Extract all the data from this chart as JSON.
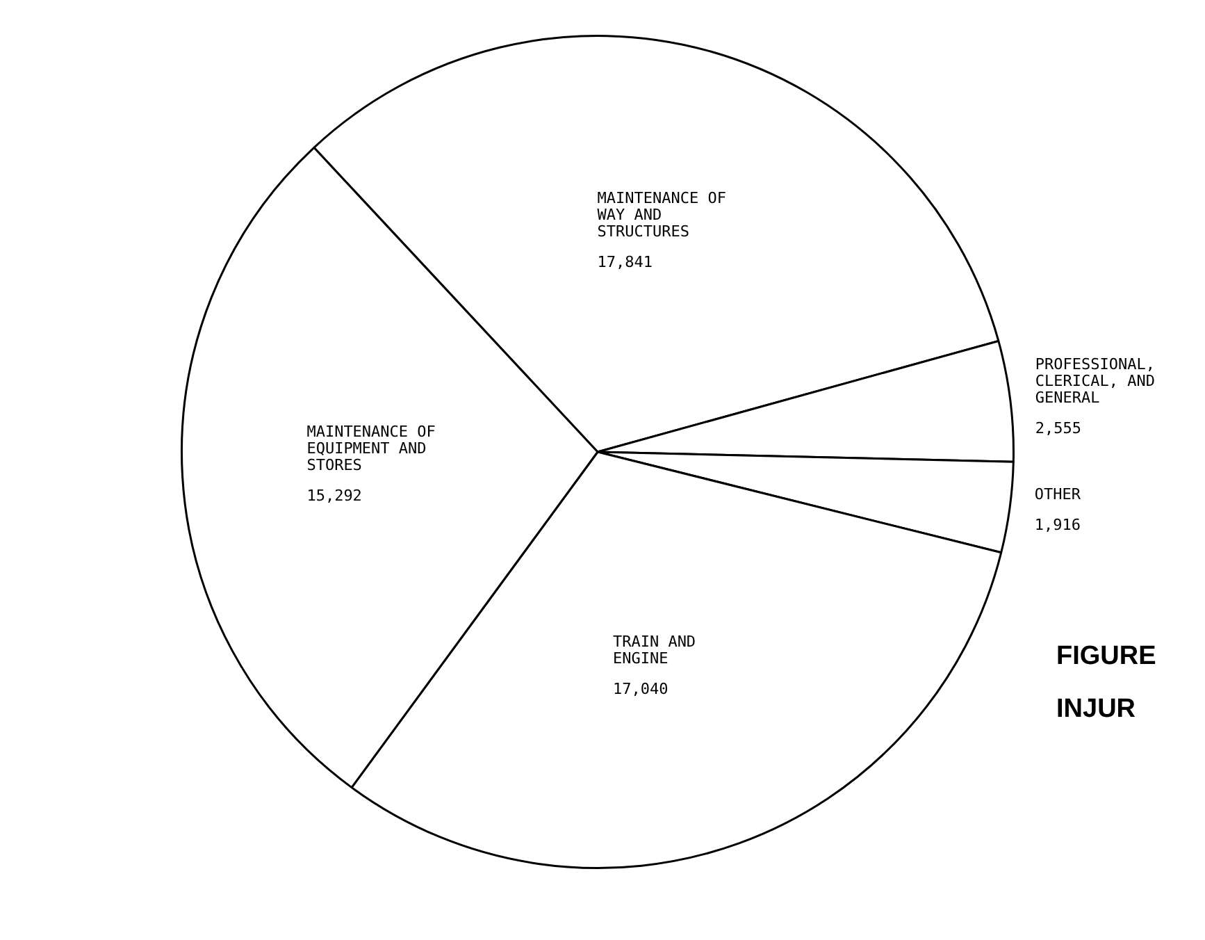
{
  "chart_data": {
    "type": "pie",
    "categories": [
      "MAINTENANCE OF WAY AND STRUCTURES",
      "PROFESSIONAL, CLERICAL, AND GENERAL",
      "OTHER",
      "TRAIN AND ENGINE",
      "MAINTENANCE OF EQUIPMENT AND STORES"
    ],
    "values": [
      17841,
      2555,
      1916,
      17040,
      15292
    ],
    "value_labels": [
      "17,841",
      "2,555",
      "1,916",
      "17,040",
      "15,292"
    ],
    "colors": [
      "#ffffff",
      "#ffffff",
      "#ffffff",
      "#ffffff",
      "#ffffff"
    ],
    "annotations": [
      "FIGURE",
      "INJUR"
    ],
    "legend": false
  }
}
